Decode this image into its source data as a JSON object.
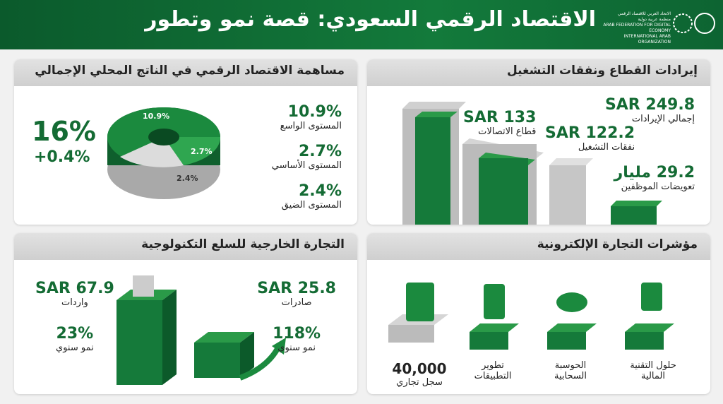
{
  "header": {
    "title": "الاقتصاد الرقمي السعودي: قصة نمو وتطور",
    "logo": {
      "line1": "الاتحاد العربي للاقتصاد الرقمي",
      "line2": "منظمة عربية دولية",
      "line3": "ARAB FEDERATION FOR DIGITAL ECONOMY",
      "line4": "INTERNATIONAL ARAB ORGANIZATION"
    }
  },
  "gdp": {
    "title": "مساهمة الاقتصاد الرقمي في الناتج المحلي الإجمالي",
    "total": "16%",
    "change": "+0.4%",
    "slices": [
      {
        "value": "10.9%",
        "name": "المستوى الواسع"
      },
      {
        "value": "2.7%",
        "name": "المستوى الأساسي"
      },
      {
        "value": "2.4%",
        "name": "المستوى الضيق"
      }
    ]
  },
  "revenue": {
    "title": "إيرادات القطاع ونفقات التشغيل",
    "items": [
      {
        "value": "SAR 249.8",
        "label": "إجمالي الإيرادات"
      },
      {
        "value": "SAR 133",
        "label": "قطاع الاتصالات"
      },
      {
        "value": "SAR 122.2",
        "label": "نفقات التشغيل"
      },
      {
        "value": "29.2 مليار",
        "label": "تعويضات الموظفين"
      }
    ]
  },
  "trade": {
    "title": "التجارة الخارجية للسلع التكنولوجية",
    "imports": {
      "value": "SAR 67.9",
      "label": "واردات",
      "growth": "23%",
      "growth_label": "نمو سنوي"
    },
    "exports": {
      "value": "SAR 25.8",
      "label": "صادرات",
      "growth": "118%",
      "growth_label": "نمو سنوي"
    }
  },
  "ecommerce": {
    "title": "مؤشرات التجارة الإلكترونية",
    "items": [
      "حلول التقنية المالية",
      "الحوسبة السحابية",
      "تطوير التطبيقات"
    ],
    "registry": {
      "value": "40,000",
      "label": "سجل تجاري"
    }
  }
}
